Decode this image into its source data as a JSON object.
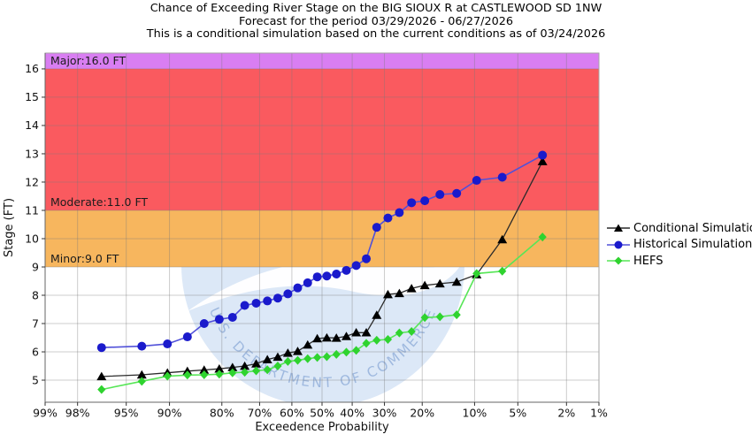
{
  "title": {
    "line1": "Chance of Exceeding River Stage on the BIG SIOUX R at CASTLEWOOD SD 1NW",
    "line2": "Forecast for the period 03/29/2026 - 06/27/2026",
    "line3": "This is a conditional simulation based on the current conditions as of 03/24/2026"
  },
  "axes": {
    "x_label": "Exceedence Probability",
    "y_label": "Stage (FT)",
    "x_tick_suffix": "%"
  },
  "bands": {
    "major": {
      "label": "Major:16.0 FT",
      "stage": 16.0,
      "color": "#d97ef2"
    },
    "moderate": {
      "label": "Moderate:11.0 FT",
      "stage": 11.0,
      "color": "#fa5a5f"
    },
    "minor": {
      "label": "Minor:9.0 FT",
      "stage": 9.0,
      "color": "#f7b65e"
    }
  },
  "legend": [
    {
      "label": "Conditional Simulation",
      "marker": "triangle",
      "color": "#000000",
      "line_color": "#2a2a2a"
    },
    {
      "label": "Historical Simulation",
      "marker": "circle",
      "color": "#1a1acc",
      "line_color": "#5151d9"
    },
    {
      "label": "HEFS",
      "marker": "diamond",
      "color": "#2fd32f",
      "line_color": "#57e657"
    }
  ],
  "watermark": {
    "text": "U.S. DEPARTMENT OF COMMERCE",
    "circle_color": "#dce8f7",
    "text_color": "#9fb9df",
    "swoosh_color": "#ffffff"
  },
  "chart_data": {
    "type": "line",
    "title": "Chance of Exceeding River Stage on the BIG SIOUX R at CASTLEWOOD SD 1NW",
    "xlabel": "Exceedence Probability",
    "ylabel": "Stage (FT)",
    "x_scale": "normal-probability",
    "grid": true,
    "legend_position": "right-outside",
    "x_ticks_percent": [
      99,
      98,
      95,
      90,
      80,
      70,
      60,
      50,
      40,
      30,
      20,
      10,
      5,
      2,
      1
    ],
    "y_ticks": [
      5,
      6,
      7,
      8,
      9,
      10,
      11,
      12,
      13,
      14,
      15,
      16
    ],
    "ylim": [
      4.22,
      16.56
    ],
    "flood_stages": {
      "minor": 9.0,
      "moderate": 11.0,
      "major": 16.0
    },
    "x_percent": [
      96.8,
      93.5,
      90.3,
      87.1,
      83.9,
      80.6,
      77.4,
      74.2,
      71.0,
      67.7,
      64.5,
      61.3,
      58.1,
      54.8,
      51.6,
      48.4,
      45.2,
      41.9,
      38.7,
      35.5,
      32.3,
      29.0,
      25.8,
      22.6,
      19.4,
      16.1,
      12.9,
      9.7,
      6.5,
      3.2
    ],
    "series": [
      {
        "name": "Conditional Simulation",
        "values": [
          5.13,
          5.19,
          5.26,
          5.32,
          5.36,
          5.4,
          5.45,
          5.5,
          5.58,
          5.73,
          5.82,
          5.96,
          6.02,
          6.25,
          6.47,
          6.5,
          6.49,
          6.55,
          6.68,
          6.68,
          7.3,
          8.03,
          8.07,
          8.24,
          8.35,
          8.41,
          8.47,
          8.73,
          9.97,
          12.73
        ]
      },
      {
        "name": "Historical Simulation",
        "values": [
          6.15,
          6.2,
          6.28,
          6.53,
          7.0,
          7.15,
          7.22,
          7.64,
          7.72,
          7.8,
          7.9,
          8.05,
          8.26,
          8.44,
          8.65,
          8.68,
          8.75,
          8.88,
          9.05,
          9.29,
          10.4,
          10.73,
          10.92,
          11.27,
          11.34,
          11.56,
          11.6,
          12.06,
          12.17,
          12.95
        ]
      },
      {
        "name": "HEFS",
        "values": [
          4.67,
          4.96,
          5.14,
          5.18,
          5.19,
          5.21,
          5.26,
          5.28,
          5.33,
          5.37,
          5.5,
          5.66,
          5.7,
          5.76,
          5.8,
          5.83,
          5.91,
          5.99,
          6.05,
          6.3,
          6.41,
          6.44,
          6.67,
          6.72,
          7.21,
          7.24,
          7.31,
          8.77,
          8.85,
          10.06
        ]
      }
    ]
  }
}
